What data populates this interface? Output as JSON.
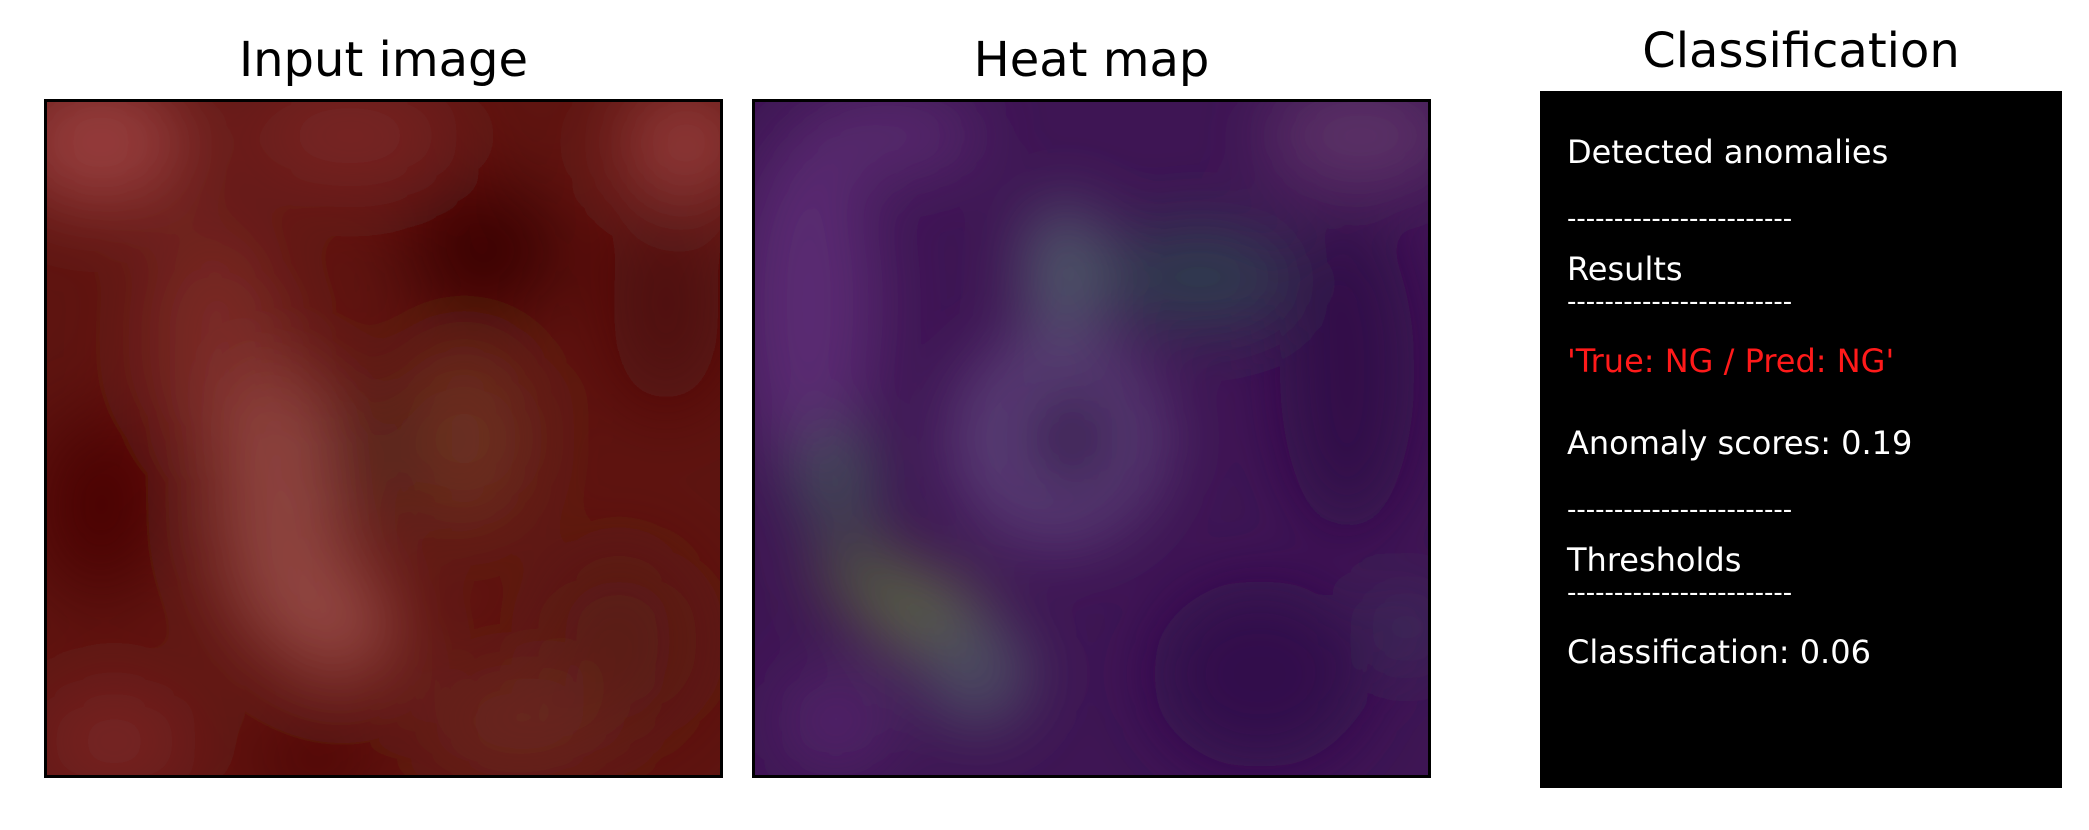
{
  "titles": {
    "input": "Input image",
    "heatmap": "Heat map",
    "classification": "Classification"
  },
  "classification_panel": {
    "heading": "Detected anomalies",
    "separator": "------------------------",
    "results_label": "Results",
    "prediction": "'True: NG / Pred: NG'",
    "anomaly_score": "Anomaly scores: 0.19",
    "thresholds_label": "Thresholds",
    "classification_threshold": "Classification: 0.06"
  },
  "colors": {
    "input_base": "#5a1210",
    "heatmap_base": "#3d1552",
    "prediction_text": "#ff1a1a",
    "panel_background": "#000000"
  }
}
